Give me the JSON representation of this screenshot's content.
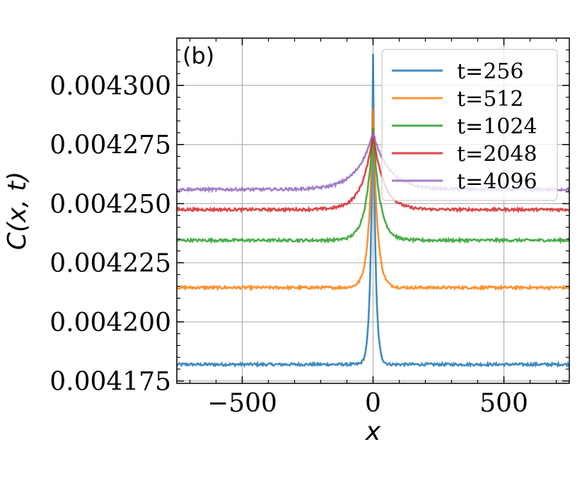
{
  "chart_data": {
    "type": "line",
    "panel_label": "(b)",
    "xlabel": "x",
    "ylabel": "C(x, t)",
    "xlim": [
      -750,
      750
    ],
    "ylim": [
      0.004174,
      0.00432
    ],
    "x_ticks": [
      -500,
      0,
      500
    ],
    "x_tick_labels": [
      "−500",
      "0",
      "500"
    ],
    "y_ticks": [
      0.004175,
      0.0042,
      0.004225,
      0.00425,
      0.004275,
      0.0043
    ],
    "y_tick_labels": [
      "0.004175",
      "0.004200",
      "0.004225",
      "0.004250",
      "0.004275",
      "0.004300"
    ],
    "grid": true,
    "legend_position": "top-right",
    "series": [
      {
        "name": "t=256",
        "color": "#1f77b4",
        "baseline": 0.004182,
        "peak": 0.004313,
        "width": 9
      },
      {
        "name": "t=512",
        "color": "#ff7f0e",
        "baseline": 0.0042145,
        "peak": 0.00429,
        "width": 16
      },
      {
        "name": "t=1024",
        "color": "#2ca02c",
        "baseline": 0.0042345,
        "peak": 0.004282,
        "width": 26
      },
      {
        "name": "t=2048",
        "color": "#d62728",
        "baseline": 0.0042475,
        "peak": 0.00428,
        "width": 40
      },
      {
        "name": "t=4096",
        "color": "#9467bd",
        "baseline": 0.004256,
        "peak": 0.00428,
        "width": 60
      }
    ]
  }
}
